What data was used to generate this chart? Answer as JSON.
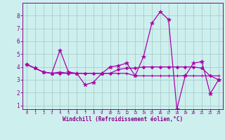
{
  "xlabel": "Windchill (Refroidissement éolien,°C)",
  "background_color": "#cdf0ee",
  "plot_bg_color": "#cdf0ee",
  "grid_color": "#aacccc",
  "line_color": "#aa00aa",
  "tick_color": "#880088",
  "spine_color": "#880088",
  "hours": [
    0,
    1,
    2,
    3,
    4,
    5,
    6,
    7,
    8,
    9,
    10,
    11,
    12,
    13,
    14,
    15,
    16,
    17,
    18,
    19,
    20,
    21,
    22,
    23
  ],
  "line1": [
    4.2,
    3.9,
    3.6,
    3.5,
    5.3,
    3.6,
    3.5,
    2.6,
    2.8,
    3.5,
    4.0,
    4.1,
    4.3,
    3.3,
    4.8,
    7.4,
    8.3,
    7.7,
    0.7,
    3.3,
    4.3,
    4.4,
    1.9,
    3.0
  ],
  "line2": [
    4.2,
    3.9,
    3.6,
    3.5,
    3.6,
    3.5,
    3.5,
    3.5,
    3.5,
    3.5,
    3.5,
    3.5,
    3.5,
    3.3,
    3.3,
    3.3,
    3.3,
    3.3,
    3.3,
    3.3,
    3.3,
    3.3,
    3.3,
    3.3
  ],
  "line3": [
    4.2,
    3.9,
    3.6,
    3.5,
    3.5,
    3.5,
    3.5,
    3.5,
    3.5,
    3.5,
    3.5,
    3.8,
    3.9,
    3.9,
    4.0,
    4.0,
    4.0,
    4.0,
    4.0,
    4.0,
    4.0,
    3.9,
    3.3,
    3.0
  ],
  "ylim": [
    0.7,
    9.0
  ],
  "yticks": [
    1,
    2,
    3,
    4,
    5,
    6,
    7,
    8
  ],
  "xlim": [
    -0.5,
    23.5
  ],
  "xticks": [
    0,
    1,
    2,
    3,
    4,
    5,
    6,
    7,
    8,
    9,
    10,
    11,
    12,
    13,
    14,
    15,
    16,
    17,
    18,
    19,
    20,
    21,
    22,
    23
  ],
  "xlabel_bar_color": "#880088",
  "lw": 0.9,
  "markersize": 3.0
}
